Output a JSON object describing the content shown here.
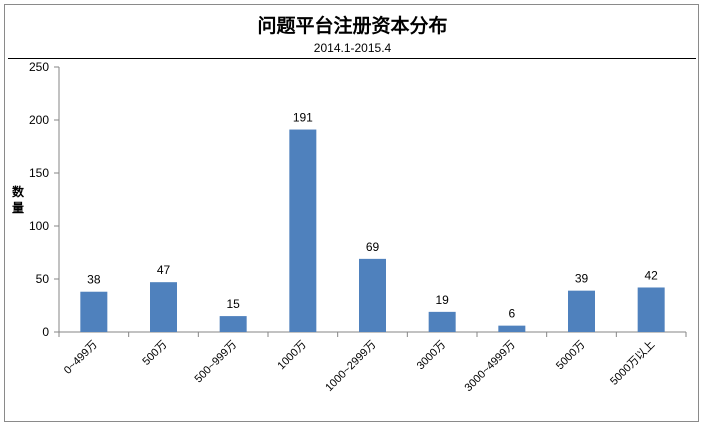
{
  "chart_data": {
    "type": "bar",
    "title": "问题平台注册资本分布",
    "subtitle": "2014.1-2015.4",
    "xlabel": "",
    "ylabel": "数量",
    "categories": [
      "0~499万",
      "500万",
      "500~999万",
      "1000万",
      "1000~2999万",
      "3000万",
      "3000~4999万",
      "5000万",
      "5000万以上"
    ],
    "values": [
      38,
      47,
      15,
      191,
      69,
      19,
      6,
      39,
      42
    ],
    "ylim": [
      0,
      250
    ],
    "yticks": [
      0,
      50,
      100,
      150,
      200,
      250
    ],
    "grid": false,
    "legend": "none",
    "bar_color": "#4f81bd",
    "axis_color": "#868686"
  }
}
